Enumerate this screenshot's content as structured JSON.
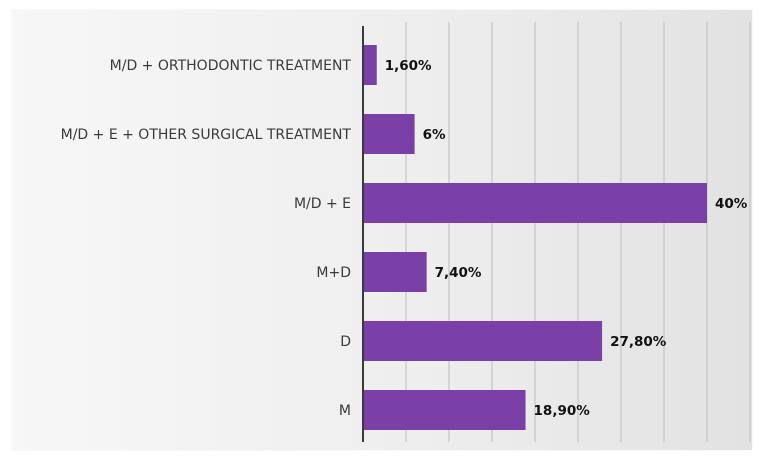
{
  "chart_data": {
    "type": "bar",
    "orientation": "horizontal",
    "categories": [
      "M/D + ORTHODONTIC TREATMENT",
      "M/D + E +  OTHER SURGICAL TREATMENT",
      "M/D + E",
      "M+D",
      "D",
      "M"
    ],
    "values": [
      1.6,
      6,
      40,
      7.4,
      27.8,
      18.9
    ],
    "data_labels": [
      "1,60%",
      "6%",
      "40%",
      "7,40%",
      "27,80%",
      "18,90%"
    ],
    "xlim": [
      0,
      45
    ],
    "x_gridlines": [
      0,
      5,
      10,
      15,
      20,
      25,
      30,
      35,
      40,
      45
    ],
    "grid": true,
    "legend": "none",
    "title": "",
    "xlabel": "",
    "ylabel": "",
    "bar_color": "#7b3fa8"
  }
}
